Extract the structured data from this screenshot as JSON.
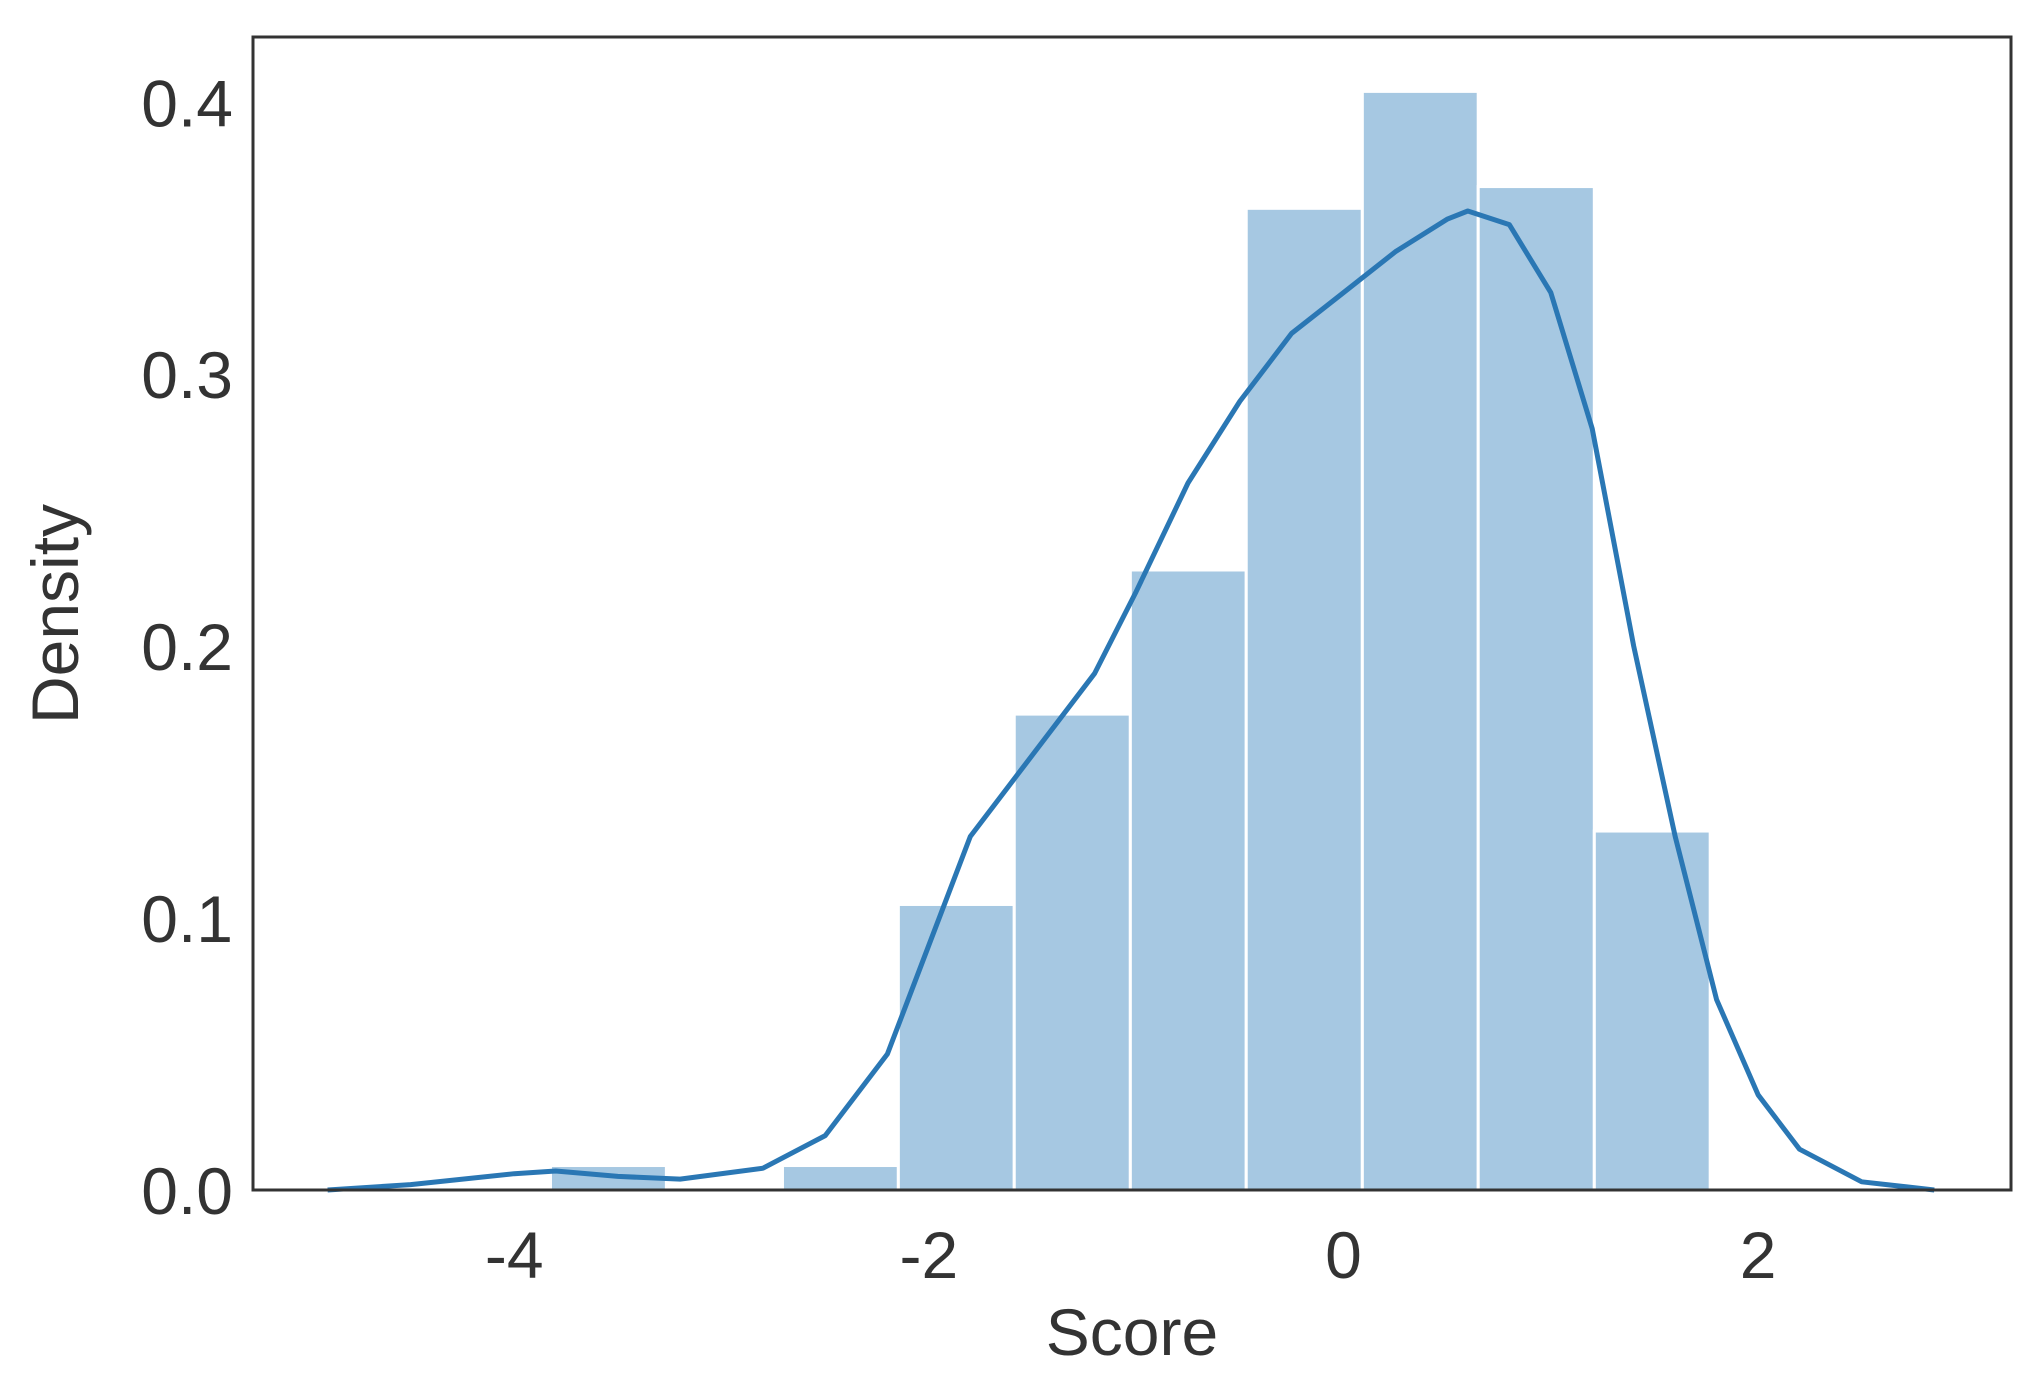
{
  "chart_data": {
    "type": "histogram",
    "xlabel": "Score",
    "ylabel": "Density",
    "bins": [
      -3.825,
      -3.266,
      -2.706,
      -2.147,
      -1.588,
      -1.028,
      -0.469,
      0.091,
      0.65,
      1.21,
      1.769
    ],
    "values": [
      0.009,
      0,
      0.009,
      0.105,
      0.175,
      0.228,
      0.361,
      0.404,
      0.369,
      0.132
    ],
    "color": "#a6c8e2",
    "edge_color": "#ffffff",
    "kde": {
      "color": "#2a77b4",
      "x": [
        -4.9,
        -4.5,
        -4.0,
        -3.8,
        -3.5,
        -3.2,
        -2.8,
        -2.5,
        -2.2,
        -2.0,
        -1.8,
        -1.5,
        -1.2,
        -1.0,
        -0.75,
        -0.5,
        -0.25,
        0,
        0.25,
        0.5,
        0.6,
        0.8,
        1.0,
        1.2,
        1.4,
        1.6,
        1.8,
        2.0,
        2.2,
        2.5,
        2.85
      ],
      "y": [
        0.0,
        0.002,
        0.006,
        0.007,
        0.005,
        0.004,
        0.008,
        0.02,
        0.05,
        0.09,
        0.13,
        0.16,
        0.19,
        0.22,
        0.26,
        0.29,
        0.315,
        0.33,
        0.345,
        0.357,
        0.36,
        0.355,
        0.33,
        0.28,
        0.2,
        0.13,
        0.07,
        0.035,
        0.015,
        0.003,
        0.0
      ]
    },
    "xlim": [
      -5.26,
      3.22
    ],
    "ylim": [
      0,
      0.424
    ],
    "xticks": [
      -4,
      -2,
      0,
      2
    ],
    "yticks": [
      {
        "value": 0,
        "label": "0.0"
      },
      0.1,
      0.2,
      0.3,
      0.4
    ],
    "grid": false
  }
}
